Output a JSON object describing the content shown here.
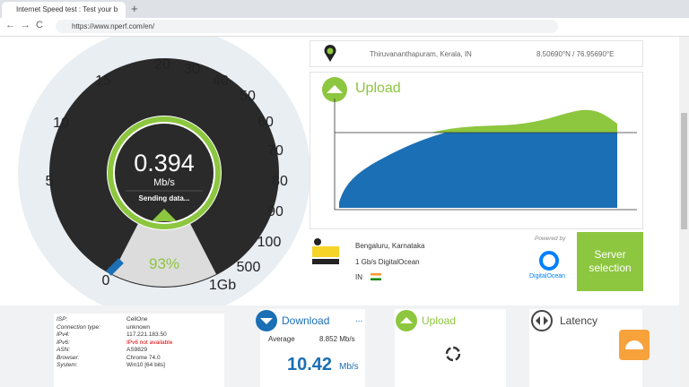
{
  "browser": {
    "tab_title": "Internet Speed test : Test your b",
    "url": "https://www.nperf.com/en/"
  },
  "gauge": {
    "scale_labels": [
      "0",
      "5",
      "10",
      "15",
      "20",
      "30",
      "40",
      "50",
      "60",
      "70",
      "80",
      "90",
      "100",
      "500",
      "1Gb"
    ],
    "speed": "0.394",
    "unit": "Mb/s",
    "status": "Sending data...",
    "progress": "93%"
  },
  "location": {
    "city": "Thiruvananthapuram, Kerala, IN",
    "coordinates": "8.50690°N / 76.95690°E"
  },
  "upload_graph": {
    "title": "Upload"
  },
  "server": {
    "city": "Bengaluru, Karnataka",
    "provider": "1 Gb/s DigitalOcean",
    "country": "IN",
    "powered_by": "Powered by",
    "sponsor": "DigitalOcean",
    "button": "Server selection"
  },
  "info": {
    "rows": [
      [
        "ISP:",
        "CellOne"
      ],
      [
        "Connection type:",
        "unknown"
      ],
      [
        "IPv4:",
        "117.221.183.50"
      ],
      [
        "IPv6:",
        "IPv6 not available"
      ],
      [
        "ASN:",
        "AS9829"
      ],
      [
        "Browser:",
        "Chrome 74.0"
      ],
      [
        "System:",
        "Win10 [64 bits]"
      ]
    ]
  },
  "cards": {
    "download": {
      "title": "Download",
      "more": "...",
      "average_label": "Average",
      "average_value": "8.852 Mb/s",
      "current_value": "10.42",
      "unit": "Mb/s"
    },
    "upload": {
      "title": "Upload"
    },
    "latency": {
      "title": "Latency"
    }
  }
}
